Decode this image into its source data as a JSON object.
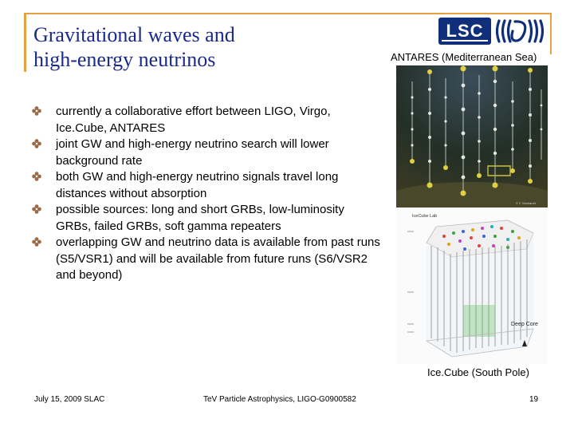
{
  "slide": {
    "title_line1": "Gravitational waves and",
    "title_line2": "high-energy neutrinos",
    "logos": {
      "lsc": "LSC",
      "virgo": "virgo-logo"
    },
    "colors": {
      "title": "#1a2a8a",
      "frame": "#e8a040",
      "bullet": "#9b6a48",
      "lsc_bg": "#0f2f7a"
    },
    "bullets": [
      "currently a collaborative effort between LIGO, Virgo, Ice.Cube, ANTARES",
      "joint GW and high-energy neutrino search will lower background rate",
      "both GW and high-energy neutrino signals travel long distances without absorption",
      "possible sources: long and short GRBs, low-luminosity GRBs, failed GRBs, soft gamma repeaters",
      "overlapping GW and neutrino data is available from past runs (S5/VSR1) and will be available from future runs (S6/VSR2 and beyond)"
    ],
    "captions": {
      "antares": "ANTARES (Mediterranean Sea)",
      "icecube": "Ice.Cube (South Pole)"
    },
    "icecube_figure": {
      "lab_label": "IceCube Lab",
      "deep_core_label": "Deep Core"
    }
  },
  "footer": {
    "left": "July 15, 2009 SLAC",
    "center": "TeV Particle Astrophysics, LIGO-G0900582",
    "page_number": "19"
  }
}
